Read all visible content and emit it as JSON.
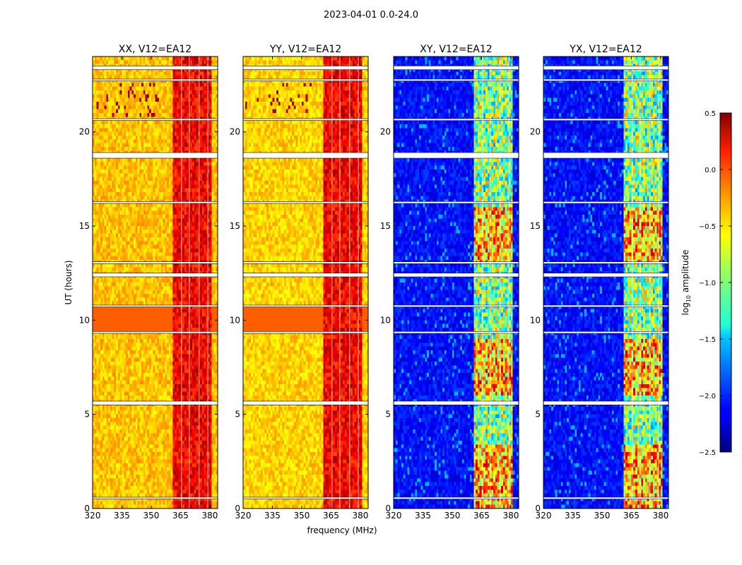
{
  "figure": {
    "suptitle": "2023-04-01 0.0-24.0",
    "ylabel": "UT (hours)",
    "xlabel": "frequency (MHz)",
    "cbar_label": "log10 amplitude"
  },
  "chart_data": {
    "type": "heatmap",
    "title": "2023-04-01 0.0-24.0",
    "xlabel": "frequency (MHz)",
    "ylabel": "UT (hours)",
    "xlim": [
      320,
      384
    ],
    "ylim": [
      0,
      24
    ],
    "xticks": [
      320,
      335,
      350,
      365,
      380
    ],
    "yticks": [
      0,
      5,
      10,
      15,
      20
    ],
    "colorbar": {
      "label": "log10 amplitude",
      "range": [
        -2.5,
        0.5
      ],
      "ticks": [
        0.5,
        0.0,
        -0.5,
        -1.0,
        -1.5,
        -2.0,
        -2.5
      ],
      "ticklabels": [
        "0.5",
        "0.0",
        "−0.5",
        "−1.0",
        "−1.5",
        "−2.0",
        "−2.5"
      ]
    },
    "panels": [
      {
        "title": "XX, V12=EA12",
        "kind": "parallel",
        "base_level": -0.45
      },
      {
        "title": "YY, V12=EA12",
        "kind": "parallel",
        "base_level": -0.5
      },
      {
        "title": "XY, V12=EA12",
        "kind": "cross",
        "base_level": -2.1
      },
      {
        "title": "YX, V12=EA12",
        "kind": "cross",
        "base_level": -2.1
      }
    ],
    "rfi_band_mhz": [
      361,
      381
    ],
    "rfi_channels_mhz": [
      365.5,
      369.5,
      374.5,
      379.0
    ],
    "bright_band_hours": [
      9.4,
      10.8
    ],
    "flagged_gaps_hours": [
      [
        0.5,
        0.6
      ],
      [
        5.5,
        5.7
      ],
      [
        9.3,
        9.4
      ],
      [
        10.7,
        10.8
      ],
      [
        12.3,
        12.5
      ],
      [
        13.0,
        13.1
      ],
      [
        16.2,
        16.3
      ],
      [
        18.6,
        18.9
      ],
      [
        20.6,
        20.7
      ],
      [
        22.7,
        22.8
      ],
      [
        23.3,
        23.5
      ]
    ]
  }
}
